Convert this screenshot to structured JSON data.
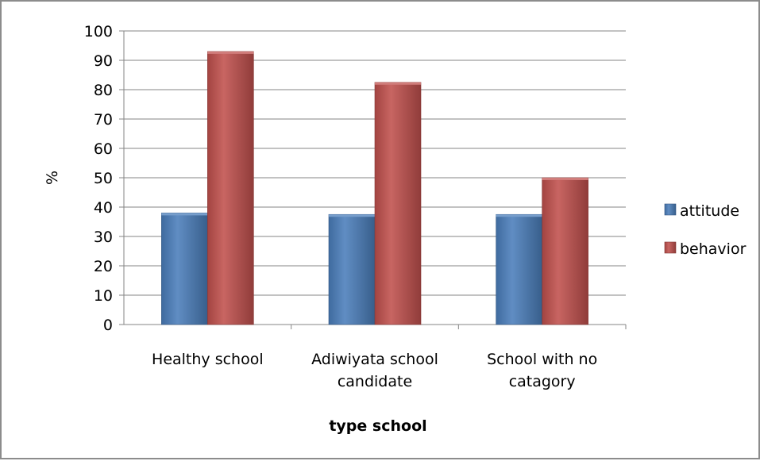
{
  "chart_data": {
    "type": "bar",
    "categories": [
      [
        "Healthy school"
      ],
      [
        "Adiwiyata school",
        "candidate"
      ],
      [
        "School with no",
        "catagory"
      ]
    ],
    "series": [
      {
        "name": "attitude",
        "values": [
          38,
          37.5,
          37.5
        ],
        "color": "#4a7ebb"
      },
      {
        "name": "behavior",
        "values": [
          93,
          82.5,
          50
        ],
        "color": "#c0504d"
      }
    ],
    "xlabel": "type school",
    "ylabel": "%",
    "ylim": [
      0,
      100
    ],
    "yticks": [
      0,
      10,
      20,
      30,
      40,
      50,
      60,
      70,
      80,
      90,
      100
    ],
    "grid": true,
    "legend_position": "right"
  }
}
